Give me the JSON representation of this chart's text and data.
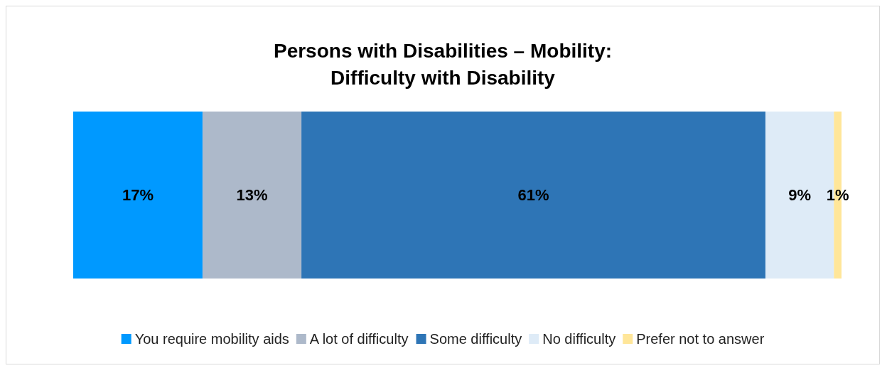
{
  "chart_data": {
    "type": "bar",
    "orientation": "horizontal",
    "stacked": true,
    "title": "Persons with Disabilities – Mobility:\nDifficulty with Disability",
    "categories": [
      null
    ],
    "legend": "bottom",
    "series": [
      {
        "name": "You require mobility aids",
        "color": "#0099ff",
        "values": [
          17
        ],
        "value_labels": [
          "17%"
        ]
      },
      {
        "name": "A lot of difficulty",
        "color": "#adb9ca",
        "values": [
          13
        ],
        "value_labels": [
          "13%"
        ]
      },
      {
        "name": "Some difficulty",
        "color": "#2e75b6",
        "values": [
          61
        ],
        "value_labels": [
          "61%"
        ]
      },
      {
        "name": "No difficulty",
        "color": "#deebf7",
        "values": [
          9
        ],
        "value_labels": [
          "9%"
        ]
      },
      {
        "name": "Prefer not to answer",
        "color": "#ffe699",
        "values": [
          1
        ],
        "value_labels": [
          "1%"
        ]
      }
    ]
  }
}
